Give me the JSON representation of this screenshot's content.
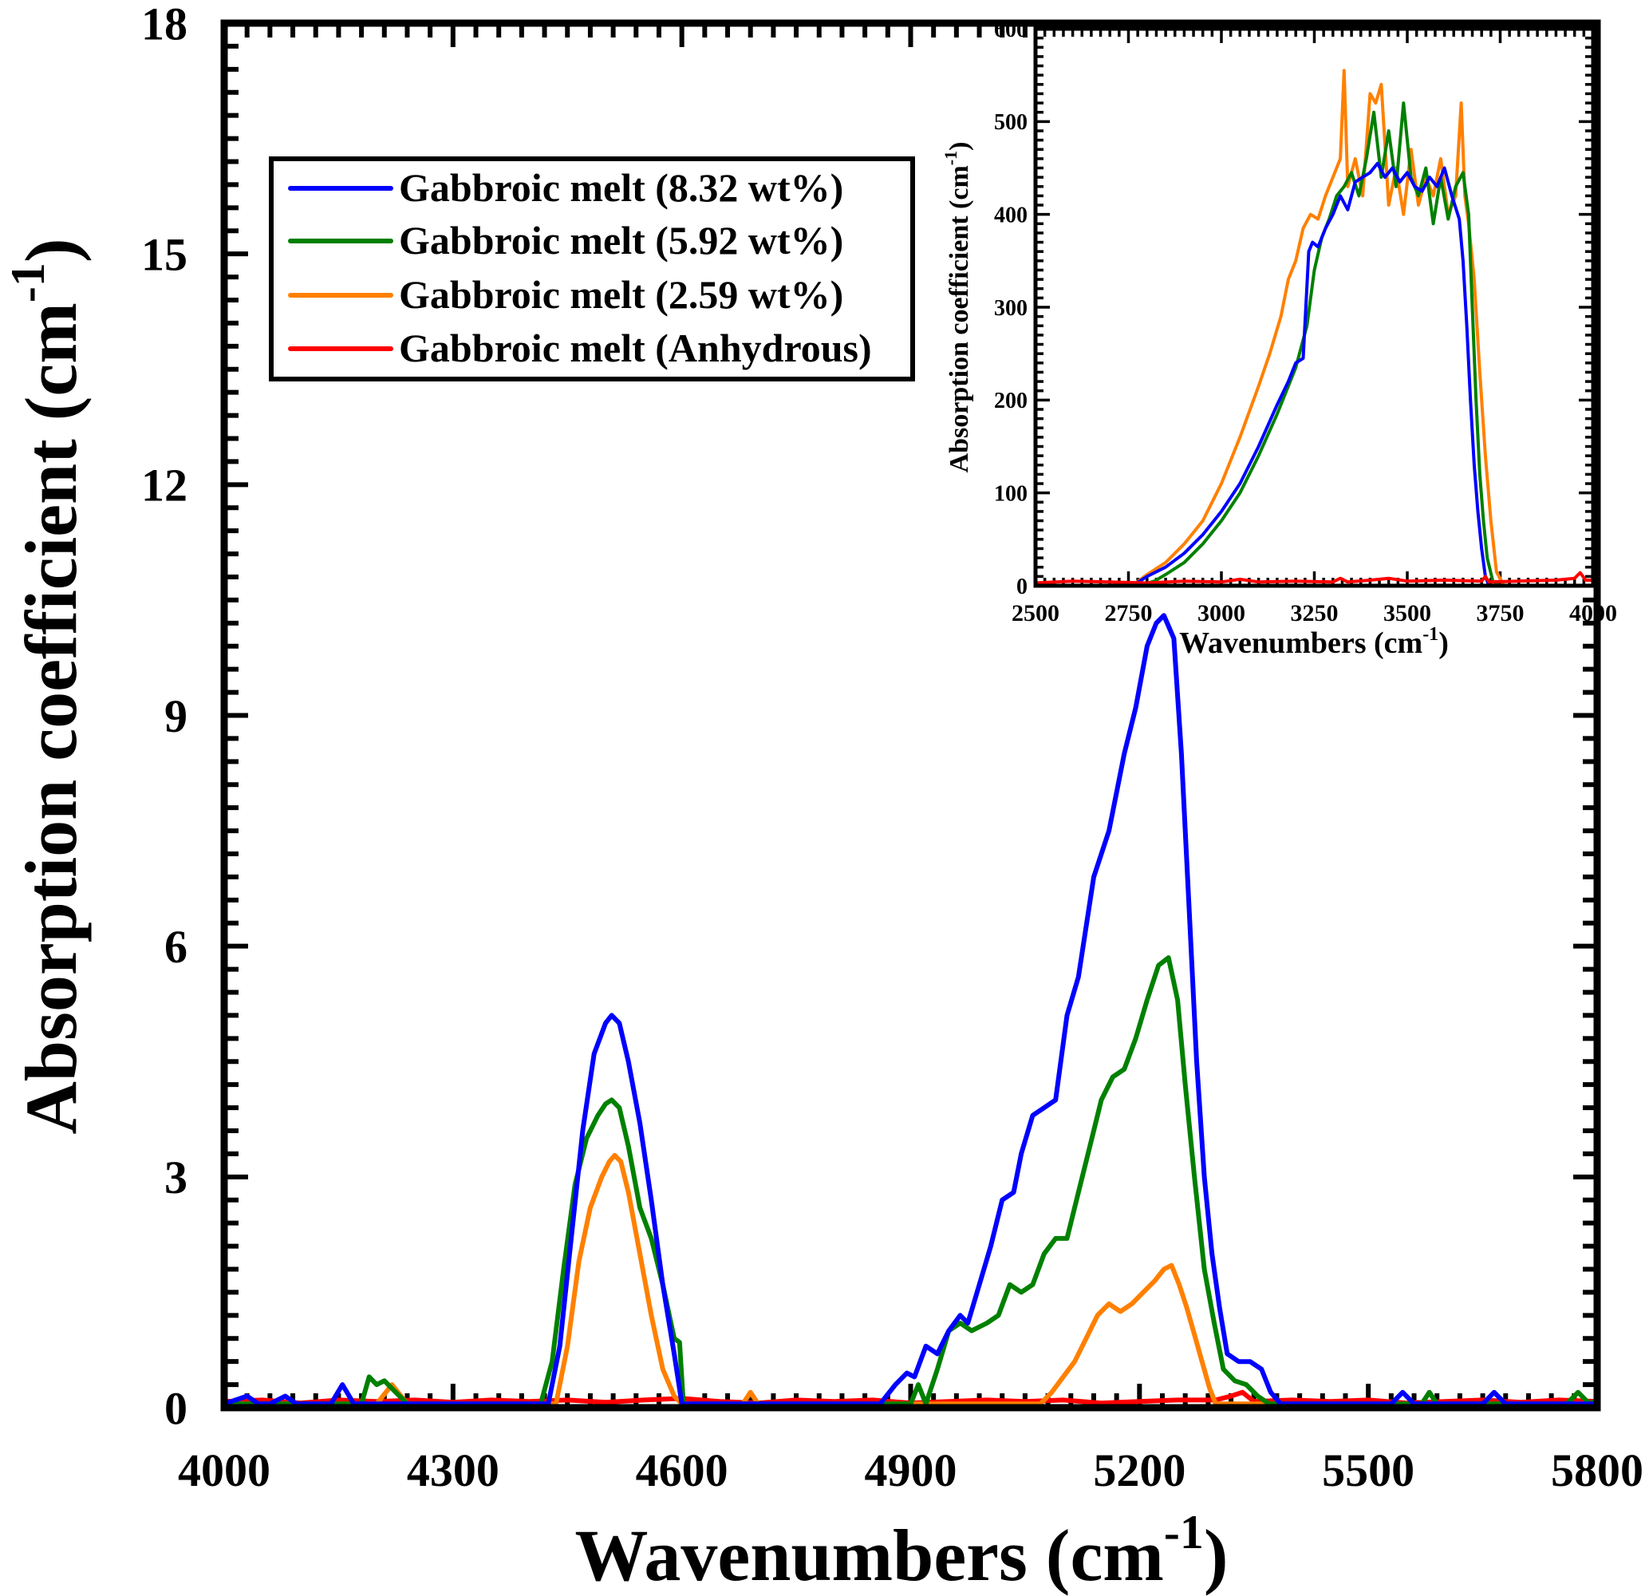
{
  "chart_data": [
    {
      "id": "main",
      "type": "line",
      "title": "",
      "xlabel": "Wavenumbers (cm",
      "xlabel_sup": "-1",
      "xlabel_close": ")",
      "ylabel": "Absorption coefficient (cm",
      "ylabel_sup": "-1",
      "ylabel_close": ")",
      "xlim": [
        4000,
        5800
      ],
      "ylim": [
        0,
        18
      ],
      "xticks": [
        4000,
        4300,
        4600,
        4900,
        5200,
        5500,
        5800
      ],
      "xtick_labels": [
        "4000",
        "4300",
        "4600",
        "4900",
        "5200",
        "5500",
        "5800"
      ],
      "x_minor_step": 30,
      "yticks": [
        0,
        3,
        6,
        9,
        12,
        15,
        18
      ],
      "ytick_labels": [
        "0",
        "3",
        "6",
        "9",
        "12",
        "15",
        "18"
      ],
      "y_minor_step": 0.3,
      "grid": false,
      "legend": {
        "placement": "top-left",
        "entries": [
          {
            "label": "Gabbroic melt (8.32 wt%)",
            "color": "#0000ff"
          },
          {
            "label": "Gabbroic melt (5.92 wt%)",
            "color": "#008000"
          },
          {
            "label": "Gabbroic melt (2.59 wt%)",
            "color": "#ff8000"
          },
          {
            "label": "Gabbroic melt (Anhydrous)",
            "color": "#ff0000"
          }
        ]
      },
      "series": [
        {
          "name": "Gabbroic melt (8.32 wt%)",
          "color": "#0000ff",
          "x": [
            4000,
            4030,
            4045,
            4060,
            4080,
            4095,
            4110,
            4140,
            4155,
            4170,
            4200,
            4240,
            4300,
            4400,
            4425,
            4440,
            4455,
            4470,
            4485,
            4500,
            4508,
            4518,
            4530,
            4545,
            4560,
            4575,
            4590,
            4600,
            4640,
            4700,
            4800,
            4860,
            4880,
            4895,
            4905,
            4920,
            4935,
            4950,
            4965,
            4975,
            4990,
            5005,
            5020,
            5035,
            5045,
            5060,
            5075,
            5090,
            5105,
            5120,
            5140,
            5160,
            5180,
            5195,
            5210,
            5222,
            5232,
            5245,
            5255,
            5265,
            5275,
            5285,
            5295,
            5305,
            5315,
            5330,
            5345,
            5360,
            5372,
            5385,
            5450,
            5530,
            5545,
            5560,
            5650,
            5665,
            5680,
            5800
          ],
          "y": [
            0.05,
            0.15,
            0.05,
            0.05,
            0.15,
            0.05,
            0.05,
            0.05,
            0.3,
            0.05,
            0.05,
            0.05,
            0.05,
            0.05,
            0.05,
            0.8,
            2.2,
            3.6,
            4.6,
            5.0,
            5.1,
            5.0,
            4.5,
            3.7,
            2.7,
            1.6,
            0.7,
            0.05,
            0.05,
            0.05,
            0.05,
            0.05,
            0.3,
            0.45,
            0.4,
            0.8,
            0.7,
            1.0,
            1.2,
            1.1,
            1.6,
            2.1,
            2.7,
            2.8,
            3.3,
            3.8,
            3.9,
            4.0,
            5.1,
            5.6,
            6.9,
            7.5,
            8.5,
            9.1,
            9.9,
            10.2,
            10.3,
            10.0,
            8.5,
            6.5,
            4.5,
            3.0,
            2.0,
            1.3,
            0.7,
            0.6,
            0.6,
            0.5,
            0.2,
            0.05,
            0.05,
            0.05,
            0.2,
            0.05,
            0.05,
            0.2,
            0.05,
            0.05
          ]
        },
        {
          "name": "Gabbroic melt (5.92 wt%)",
          "color": "#008000",
          "x": [
            4000,
            4150,
            4180,
            4190,
            4200,
            4210,
            4225,
            4240,
            4300,
            4415,
            4430,
            4445,
            4460,
            4475,
            4490,
            4500,
            4508,
            4518,
            4530,
            4545,
            4560,
            4575,
            4590,
            4597,
            4602,
            4640,
            4800,
            4900,
            4910,
            4920,
            4935,
            4950,
            4965,
            4980,
            5000,
            5015,
            5030,
            5045,
            5060,
            5075,
            5090,
            5105,
            5120,
            5135,
            5150,
            5165,
            5180,
            5195,
            5210,
            5225,
            5238,
            5250,
            5260,
            5272,
            5285,
            5298,
            5310,
            5325,
            5340,
            5355,
            5370,
            5500,
            5570,
            5580,
            5590,
            5760,
            5775,
            5790,
            5800
          ],
          "y": [
            0.05,
            0.05,
            0.05,
            0.4,
            0.3,
            0.35,
            0.2,
            0.05,
            0.05,
            0.05,
            0.6,
            1.8,
            2.9,
            3.5,
            3.8,
            3.95,
            4.0,
            3.9,
            3.4,
            2.6,
            2.2,
            1.6,
            0.9,
            0.85,
            0.05,
            0.05,
            0.05,
            0.05,
            0.3,
            0.05,
            0.5,
            1.0,
            1.1,
            1.0,
            1.1,
            1.2,
            1.6,
            1.5,
            1.6,
            2.0,
            2.2,
            2.2,
            2.8,
            3.4,
            4.0,
            4.3,
            4.4,
            4.8,
            5.3,
            5.75,
            5.85,
            5.3,
            4.2,
            3.0,
            1.8,
            1.1,
            0.5,
            0.35,
            0.3,
            0.15,
            0.05,
            0.05,
            0.05,
            0.2,
            0.05,
            0.05,
            0.2,
            0.05,
            0.1
          ]
        },
        {
          "name": "Gabbroic melt (2.59 wt%)",
          "color": "#ff8000",
          "x": [
            4000,
            4200,
            4220,
            4240,
            4300,
            4435,
            4450,
            4465,
            4480,
            4495,
            4505,
            4512,
            4520,
            4530,
            4545,
            4560,
            4575,
            4590,
            4600,
            4680,
            4690,
            4700,
            5070,
            5085,
            5100,
            5115,
            5130,
            5145,
            5160,
            5175,
            5190,
            5205,
            5220,
            5232,
            5242,
            5252,
            5262,
            5272,
            5282,
            5292,
            5300,
            5800
          ],
          "y": [
            0.05,
            0.05,
            0.3,
            0.05,
            0.05,
            0.05,
            0.8,
            1.9,
            2.6,
            3.0,
            3.2,
            3.28,
            3.2,
            2.8,
            2.0,
            1.2,
            0.5,
            0.15,
            0.05,
            0.05,
            0.2,
            0.05,
            0.05,
            0.2,
            0.4,
            0.6,
            0.9,
            1.2,
            1.35,
            1.25,
            1.35,
            1.5,
            1.65,
            1.8,
            1.85,
            1.6,
            1.3,
            0.95,
            0.6,
            0.25,
            0.05,
            0.05
          ]
        },
        {
          "name": "Gabbroic melt (Anhydrous)",
          "color": "#ff0000",
          "x": [
            4000,
            4050,
            4100,
            4150,
            4200,
            4250,
            4300,
            4350,
            4400,
            4450,
            4500,
            4550,
            4600,
            4650,
            4700,
            4750,
            4800,
            4850,
            4900,
            4950,
            5000,
            5050,
            5100,
            5150,
            5200,
            5250,
            5300,
            5320,
            5335,
            5350,
            5400,
            5450,
            5500,
            5550,
            5600,
            5650,
            5700,
            5750,
            5800
          ],
          "y": [
            0.08,
            0.1,
            0.06,
            0.1,
            0.08,
            0.1,
            0.07,
            0.1,
            0.08,
            0.1,
            0.07,
            0.1,
            0.12,
            0.08,
            0.06,
            0.1,
            0.08,
            0.1,
            0.06,
            0.08,
            0.1,
            0.08,
            0.1,
            0.06,
            0.08,
            0.1,
            0.1,
            0.15,
            0.2,
            0.08,
            0.1,
            0.08,
            0.1,
            0.06,
            0.08,
            0.1,
            0.07,
            0.1,
            0.08
          ]
        }
      ]
    },
    {
      "id": "inset",
      "type": "line",
      "title": "",
      "xlabel": "Wavenumbers (cm",
      "xlabel_sup": "-1",
      "xlabel_close": ")",
      "ylabel": "Absorption coefficient (cm",
      "ylabel_sup": "-1",
      "ylabel_close": ")",
      "xlim": [
        2500,
        4000
      ],
      "ylim": [
        0,
        600
      ],
      "xticks": [
        2500,
        2750,
        3000,
        3250,
        3500,
        3750,
        4000
      ],
      "xtick_labels": [
        "2500",
        "2750",
        "3000",
        "3250",
        "3500",
        "3750",
        "4000"
      ],
      "x_minor_step": 25,
      "yticks": [
        0,
        100,
        200,
        300,
        400,
        500,
        600
      ],
      "ytick_labels": [
        "0",
        "100",
        "200",
        "300",
        "400",
        "500",
        "600"
      ],
      "y_minor_step": 10,
      "grid": false,
      "legend": null,
      "series": [
        {
          "name": "Gabbroic melt (8.32 wt%)",
          "color": "#0000ff",
          "x": [
            2500,
            2760,
            2800,
            2850,
            2900,
            2950,
            3000,
            3050,
            3100,
            3150,
            3180,
            3200,
            3220,
            3235,
            3245,
            3260,
            3280,
            3300,
            3320,
            3340,
            3360,
            3380,
            3400,
            3420,
            3440,
            3460,
            3480,
            3500,
            3520,
            3540,
            3560,
            3580,
            3600,
            3620,
            3640,
            3650,
            3660,
            3670,
            3680,
            3690,
            3700,
            3710,
            3720,
            3740,
            3800,
            4000
          ],
          "y": [
            0,
            0,
            10,
            20,
            35,
            55,
            80,
            110,
            150,
            195,
            220,
            240,
            245,
            360,
            370,
            365,
            385,
            400,
            420,
            405,
            435,
            440,
            445,
            455,
            440,
            450,
            435,
            445,
            430,
            425,
            440,
            430,
            450,
            420,
            395,
            350,
            280,
            200,
            130,
            80,
            40,
            10,
            0,
            0,
            0,
            0
          ]
        },
        {
          "name": "Gabbroic melt (5.92 wt%)",
          "color": "#008000",
          "x": [
            2500,
            2780,
            2820,
            2850,
            2900,
            2950,
            3000,
            3050,
            3100,
            3150,
            3200,
            3230,
            3250,
            3270,
            3290,
            3310,
            3330,
            3350,
            3370,
            3390,
            3410,
            3430,
            3450,
            3470,
            3490,
            3510,
            3530,
            3550,
            3570,
            3590,
            3610,
            3630,
            3650,
            3665,
            3675,
            3685,
            3695,
            3705,
            3715,
            3730,
            3750,
            4000
          ],
          "y": [
            0,
            0,
            5,
            12,
            25,
            45,
            70,
            100,
            140,
            185,
            235,
            280,
            340,
            375,
            395,
            420,
            430,
            445,
            420,
            460,
            510,
            440,
            490,
            430,
            520,
            440,
            420,
            450,
            390,
            440,
            395,
            430,
            445,
            400,
            300,
            200,
            120,
            70,
            30,
            5,
            0,
            0
          ]
        },
        {
          "name": "Gabbroic melt (2.59 wt%)",
          "color": "#ff8000",
          "x": [
            2500,
            2760,
            2800,
            2850,
            2900,
            2950,
            3000,
            3050,
            3100,
            3130,
            3160,
            3180,
            3200,
            3220,
            3240,
            3260,
            3280,
            3300,
            3320,
            3330,
            3340,
            3360,
            3380,
            3400,
            3415,
            3430,
            3450,
            3470,
            3490,
            3510,
            3530,
            3550,
            3570,
            3590,
            3610,
            3630,
            3645,
            3655,
            3665,
            3680,
            3695,
            3710,
            3725,
            3740,
            3760,
            4000
          ],
          "y": [
            0,
            0,
            12,
            25,
            45,
            70,
            110,
            160,
            215,
            250,
            290,
            330,
            350,
            385,
            400,
            395,
            420,
            440,
            460,
            555,
            430,
            460,
            420,
            530,
            520,
            540,
            410,
            450,
            400,
            470,
            410,
            440,
            420,
            460,
            400,
            420,
            520,
            420,
            390,
            330,
            230,
            140,
            70,
            15,
            0,
            0
          ]
        },
        {
          "name": "Gabbroic melt (Anhydrous)",
          "color": "#ff0000",
          "x": [
            2500,
            2600,
            2700,
            2800,
            2900,
            3000,
            3050,
            3100,
            3200,
            3300,
            3320,
            3340,
            3400,
            3450,
            3500,
            3600,
            3700,
            3710,
            3720,
            3800,
            3900,
            3950,
            3965,
            3980,
            4000
          ],
          "y": [
            3,
            5,
            4,
            3,
            5,
            4,
            7,
            4,
            5,
            4,
            8,
            4,
            6,
            8,
            5,
            6,
            5,
            10,
            4,
            5,
            6,
            8,
            14,
            6,
            6
          ]
        }
      ]
    }
  ]
}
